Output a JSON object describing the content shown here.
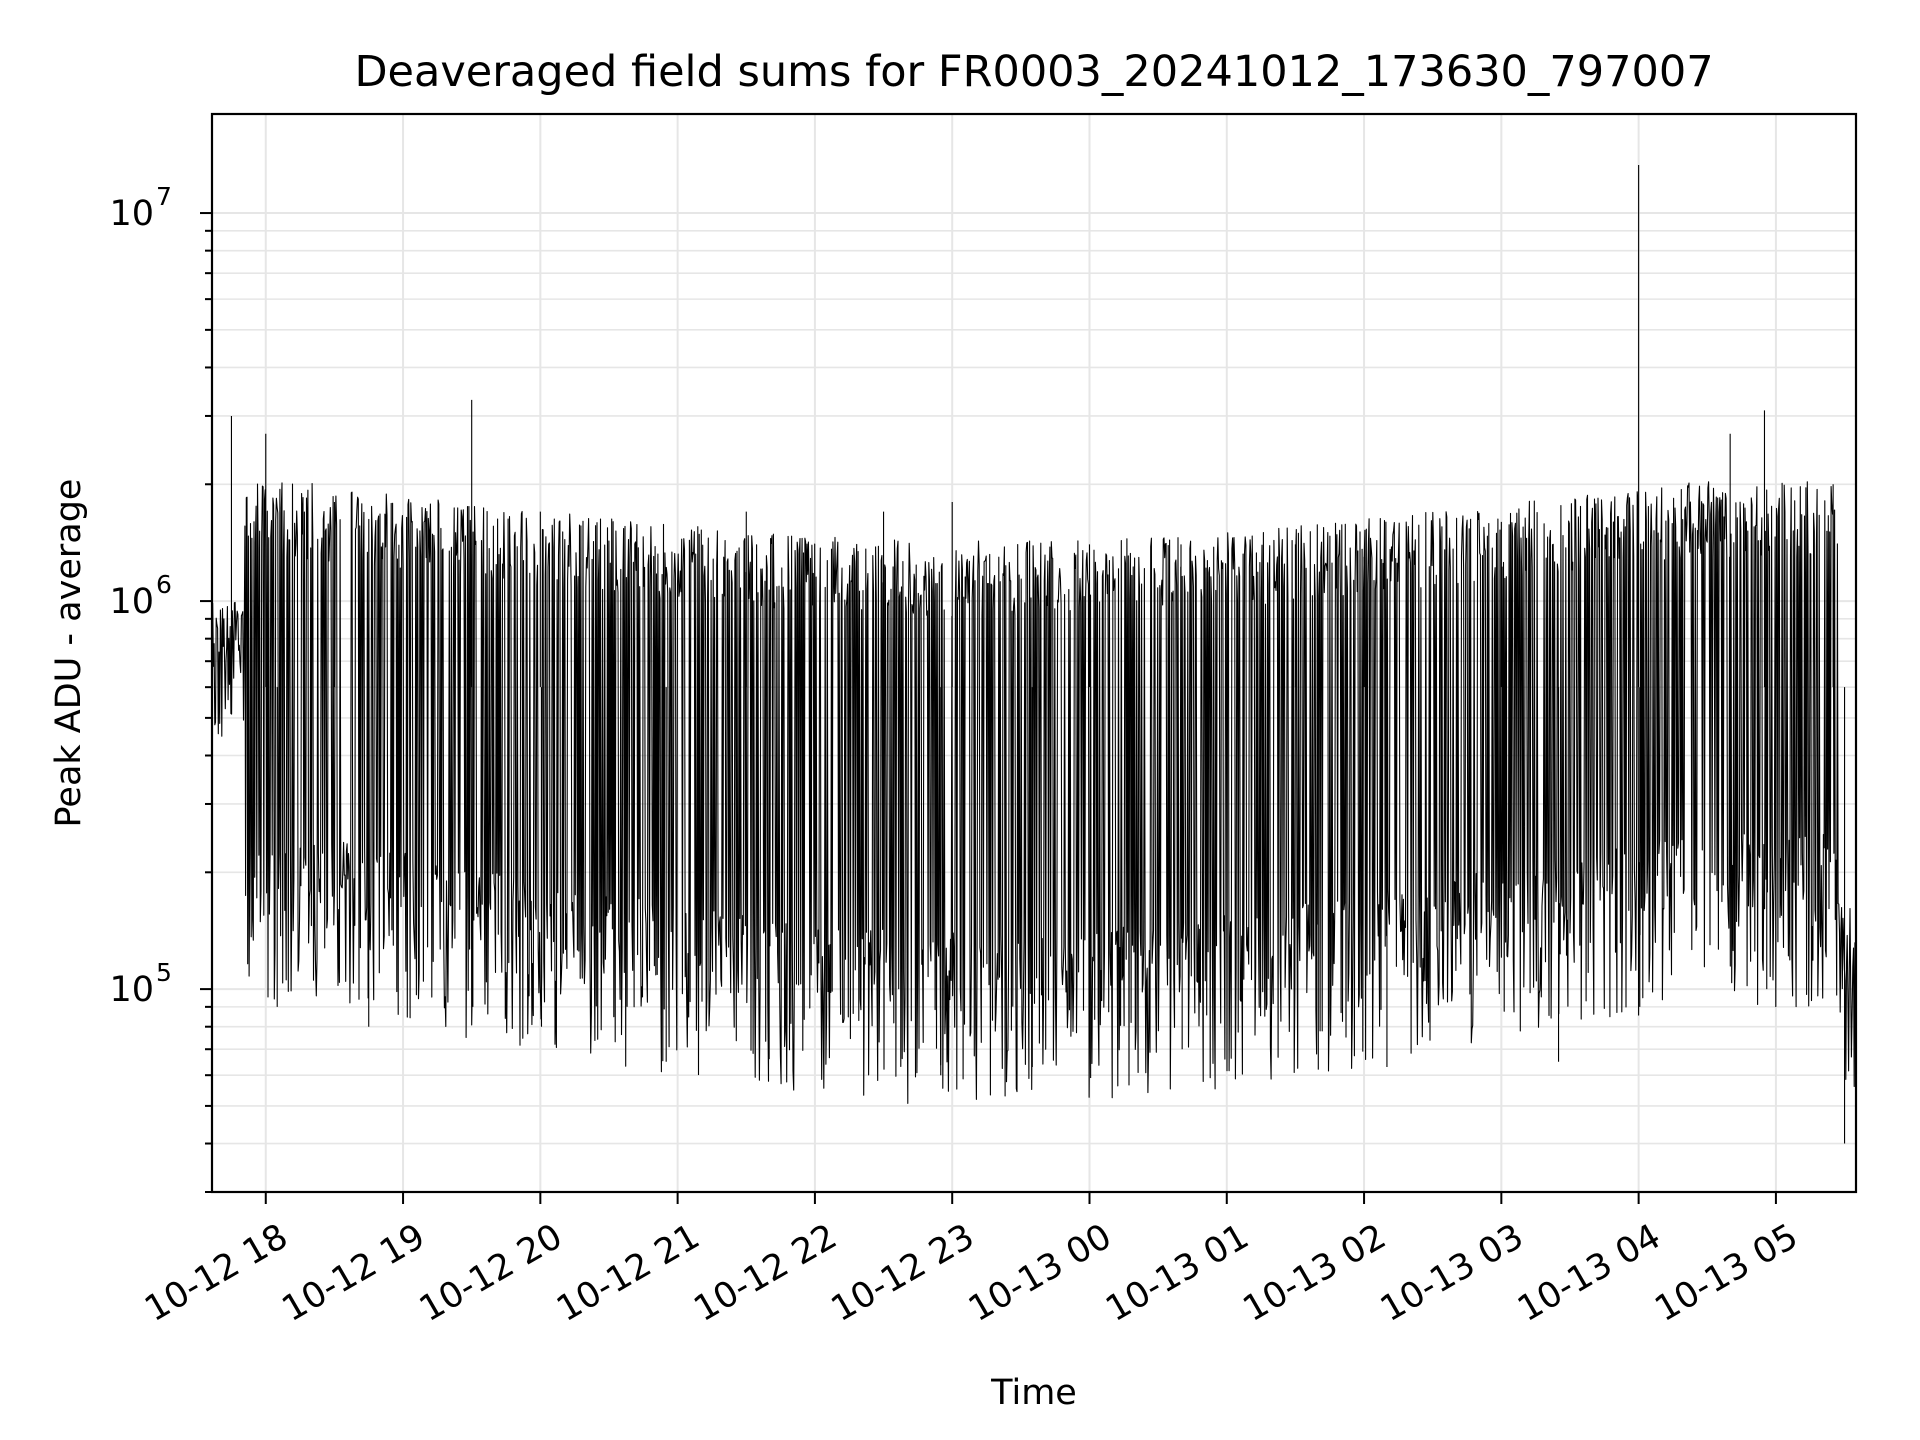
{
  "chart_data": {
    "type": "line",
    "title": "Deaveraged field sums for FR0003_20241012_173630_797007",
    "xlabel": "Time",
    "ylabel": "Peak ADU - average",
    "x_scale": "time",
    "y_scale": "log",
    "xlim": [
      "2024-10-12T17:36:30",
      "2024-10-13T05:35:00"
    ],
    "ylim": [
      30000,
      18000000
    ],
    "grid": true,
    "x_ticks": [
      {
        "time": "2024-10-12T18:00:00",
        "label": "10-12 18"
      },
      {
        "time": "2024-10-12T19:00:00",
        "label": "10-12 19"
      },
      {
        "time": "2024-10-12T20:00:00",
        "label": "10-12 20"
      },
      {
        "time": "2024-10-12T21:00:00",
        "label": "10-12 21"
      },
      {
        "time": "2024-10-12T22:00:00",
        "label": "10-12 22"
      },
      {
        "time": "2024-10-12T23:00:00",
        "label": "10-12 23"
      },
      {
        "time": "2024-10-13T00:00:00",
        "label": "10-13 00"
      },
      {
        "time": "2024-10-13T01:00:00",
        "label": "10-13 01"
      },
      {
        "time": "2024-10-13T02:00:00",
        "label": "10-13 02"
      },
      {
        "time": "2024-10-13T03:00:00",
        "label": "10-13 03"
      },
      {
        "time": "2024-10-13T04:00:00",
        "label": "10-13 04"
      },
      {
        "time": "2024-10-13T05:00:00",
        "label": "10-13 05"
      }
    ],
    "y_ticks": [
      {
        "value": 100000,
        "base": "10",
        "exp": "5"
      },
      {
        "value": 1000000,
        "base": "10",
        "exp": "6"
      },
      {
        "value": 10000000,
        "base": "10",
        "exp": "7"
      }
    ],
    "series": [
      {
        "color": "#000000",
        "style": "dense noisy line",
        "points": [
          {
            "t": "2024-10-12T17:36:30",
            "y": 500000
          },
          {
            "t": "2024-10-12T17:45:00",
            "y": 3000000
          },
          {
            "t": "2024-10-12T18:00:00",
            "y": 2700000
          },
          {
            "t": "2024-10-12T18:05:00",
            "y": 90000
          },
          {
            "t": "2024-10-12T18:30:00",
            "y": 1800000
          },
          {
            "t": "2024-10-12T18:45:00",
            "y": 80000
          },
          {
            "t": "2024-10-12T19:30:00",
            "y": 3300000
          },
          {
            "t": "2024-10-12T19:30:30",
            "y": 90000
          },
          {
            "t": "2024-10-12T20:00:00",
            "y": 1700000
          },
          {
            "t": "2024-10-12T20:00:30",
            "y": 80000
          },
          {
            "t": "2024-10-12T20:55:00",
            "y": 65000
          },
          {
            "t": "2024-10-12T21:30:00",
            "y": 1700000
          },
          {
            "t": "2024-10-12T21:40:00",
            "y": 66000
          },
          {
            "t": "2024-10-12T22:30:00",
            "y": 1700000
          },
          {
            "t": "2024-10-12T22:55:00",
            "y": 60000
          },
          {
            "t": "2024-10-12T23:00:00",
            "y": 1800000
          },
          {
            "t": "2024-10-12T23:35:00",
            "y": 63000
          },
          {
            "t": "2024-10-13T00:00:00",
            "y": 1400000
          },
          {
            "t": "2024-10-13T00:00:30",
            "y": 59000
          },
          {
            "t": "2024-10-13T00:40:00",
            "y": 1400000
          },
          {
            "t": "2024-10-13T00:40:30",
            "y": 70000
          },
          {
            "t": "2024-10-13T01:30:00",
            "y": 1400000
          },
          {
            "t": "2024-10-13T01:40:00",
            "y": 62000
          },
          {
            "t": "2024-10-13T02:00:00",
            "y": 1300000
          },
          {
            "t": "2024-10-13T02:10:00",
            "y": 63000
          },
          {
            "t": "2024-10-13T03:00:00",
            "y": 1600000
          },
          {
            "t": "2024-10-13T03:25:00",
            "y": 65000
          },
          {
            "t": "2024-10-13T04:00:00",
            "y": 13300000
          },
          {
            "t": "2024-10-13T04:00:30",
            "y": 90000
          },
          {
            "t": "2024-10-13T04:40:00",
            "y": 2700000
          },
          {
            "t": "2024-10-13T04:55:00",
            "y": 3100000
          },
          {
            "t": "2024-10-13T04:56:00",
            "y": 100000
          },
          {
            "t": "2024-10-13T05:25:00",
            "y": 2000000
          },
          {
            "t": "2024-10-13T05:30:00",
            "y": 40000
          },
          {
            "t": "2024-10-13T05:35:00",
            "y": 60000
          }
        ]
      }
    ]
  }
}
